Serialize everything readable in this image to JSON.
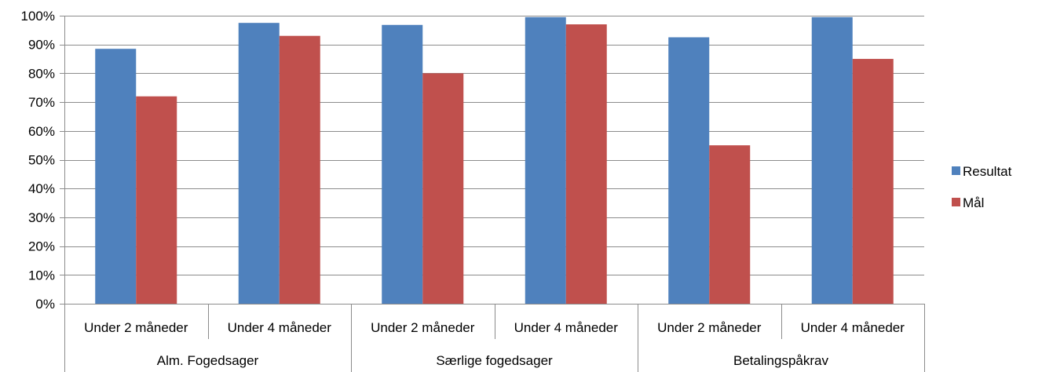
{
  "chart_data": {
    "type": "bar",
    "title": "",
    "xlabel": "",
    "ylabel": "",
    "ylim": [
      0,
      100
    ],
    "y_ticks": [
      "0%",
      "10%",
      "20%",
      "30%",
      "40%",
      "50%",
      "60%",
      "70%",
      "80%",
      "90%",
      "100%"
    ],
    "grid": true,
    "legend_position": "right",
    "groups": [
      "Alm. Fogedsager",
      "Særlige fogedsager",
      "Betalingspåkrav"
    ],
    "categories": [
      "Under 2 måneder",
      "Under 4 måneder",
      "Under 2 måneder",
      "Under 4 måneder",
      "Under 2 måneder",
      "Under 4 måneder"
    ],
    "series": [
      {
        "name": "Resultat",
        "color": "#4F81BD",
        "values": [
          88.5,
          97.5,
          96.8,
          99.5,
          92.5,
          99.5
        ]
      },
      {
        "name": "Mål",
        "color": "#C0504D",
        "values": [
          72,
          93,
          80,
          97,
          55,
          85
        ]
      }
    ]
  }
}
